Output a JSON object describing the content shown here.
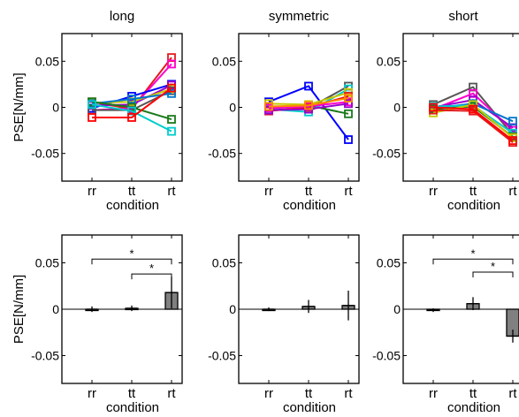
{
  "chart_data": [
    {
      "type": "line",
      "title": "long",
      "xlabel": "condition",
      "ylabel": "PSE[N/mm]",
      "categories": [
        "rr",
        "tt",
        "rt"
      ],
      "ylim": [
        -0.08,
        0.08
      ],
      "yticks": [
        "0.05",
        "0",
        "-0.05"
      ],
      "ytick_values": [
        0.05,
        0,
        -0.05
      ],
      "marker": "square",
      "series": [
        {
          "color": "#e41a1c",
          "values": [
            0.006,
            -0.002,
            0.054
          ]
        },
        {
          "color": "#ff00cc",
          "values": [
            -0.003,
            -0.001,
            0.047
          ]
        },
        {
          "color": "#0000ff",
          "values": [
            -0.001,
            0.012,
            0.025
          ]
        },
        {
          "color": "#9900cc",
          "values": [
            0.002,
            0.003,
            0.024
          ]
        },
        {
          "color": "#c8c800",
          "values": [
            0.005,
            0.006,
            0.02
          ]
        },
        {
          "color": "#555555",
          "values": [
            -0.003,
            -0.003,
            0.018
          ]
        },
        {
          "color": "#0077cc",
          "values": [
            0.004,
            0.009,
            0.015
          ]
        },
        {
          "color": "#1a7a1a",
          "values": [
            0.006,
            0.0,
            -0.013
          ]
        },
        {
          "color": "#00cccc",
          "values": [
            0.003,
            -0.004,
            -0.026
          ]
        },
        {
          "color": "#ff0000",
          "values": [
            -0.011,
            -0.011,
            0.021
          ]
        }
      ]
    },
    {
      "type": "line",
      "title": "symmetric",
      "xlabel": "condition",
      "categories": [
        "rr",
        "tt",
        "rt"
      ],
      "ylim": [
        -0.08,
        0.08
      ],
      "yticks": [
        "0.05",
        "0",
        "-0.05"
      ],
      "ytick_values": [
        0.05,
        0,
        -0.05
      ],
      "marker": "square",
      "series": [
        {
          "color": "#0000ff",
          "values": [
            0.006,
            0.023,
            -0.035
          ]
        },
        {
          "color": "#555555",
          "values": [
            -0.003,
            -0.001,
            0.023
          ]
        },
        {
          "color": "#1a7a1a",
          "values": [
            0.0,
            0.002,
            -0.007
          ]
        },
        {
          "color": "#00cccc",
          "values": [
            -0.002,
            -0.005,
            0.02
          ]
        },
        {
          "color": "#c8c800",
          "values": [
            0.004,
            0.003,
            0.016
          ]
        },
        {
          "color": "#e41a1c",
          "values": [
            -0.004,
            0.0,
            0.012
          ]
        },
        {
          "color": "#ff00cc",
          "values": [
            -0.001,
            0.001,
            0.006
          ]
        },
        {
          "color": "#9900cc",
          "values": [
            -0.003,
            -0.002,
            0.004
          ]
        },
        {
          "color": "#ff8800",
          "values": [
            0.001,
            0.002,
            0.01
          ]
        }
      ]
    },
    {
      "type": "line",
      "title": "short",
      "xlabel": "condition",
      "categories": [
        "rr",
        "tt",
        "rt"
      ],
      "ylim": [
        -0.08,
        0.08
      ],
      "yticks": [
        "0.05",
        "0",
        "-0.05"
      ],
      "ytick_values": [
        0.05,
        0,
        -0.05
      ],
      "marker": "square",
      "series": [
        {
          "color": "#555555",
          "values": [
            0.003,
            0.022,
            -0.03
          ]
        },
        {
          "color": "#ff00cc",
          "values": [
            -0.002,
            0.015,
            -0.025
          ]
        },
        {
          "color": "#9900cc",
          "values": [
            0.0,
            0.008,
            -0.022
          ]
        },
        {
          "color": "#0077cc",
          "values": [
            -0.001,
            0.004,
            -0.015
          ]
        },
        {
          "color": "#00cccc",
          "values": [
            0.001,
            0.002,
            -0.028
          ]
        },
        {
          "color": "#1a7a1a",
          "values": [
            -0.002,
            0.001,
            -0.032
          ]
        },
        {
          "color": "#c8c800",
          "values": [
            -0.006,
            0.003,
            -0.033
          ]
        },
        {
          "color": "#e41a1c",
          "values": [
            -0.003,
            -0.004,
            -0.038
          ]
        },
        {
          "color": "#ff0000",
          "values": [
            0.0,
            -0.002,
            -0.036
          ]
        }
      ]
    },
    {
      "type": "bar",
      "xlabel": "condition",
      "ylabel": "PSE[N/mm]",
      "categories": [
        "rr",
        "tt",
        "rt"
      ],
      "ylim": [
        -0.08,
        0.08
      ],
      "yticks": [
        "0.05",
        "0",
        "-0.05"
      ],
      "ytick_values": [
        0.05,
        0,
        -0.05
      ],
      "values": [
        0.0,
        0.001,
        0.018
      ],
      "errors": [
        0.003,
        0.003,
        0.017
      ],
      "bar_color": "#808080",
      "significance": [
        {
          "from": 0,
          "to": 2,
          "label": "*",
          "y": 0.054
        },
        {
          "from": 1,
          "to": 2,
          "label": "*",
          "y": 0.038
        }
      ]
    },
    {
      "type": "bar",
      "xlabel": "condition",
      "categories": [
        "rr",
        "tt",
        "rt"
      ],
      "ylim": [
        -0.08,
        0.08
      ],
      "yticks": [
        "0.05",
        "0",
        "-0.05"
      ],
      "ytick_values": [
        0.05,
        0,
        -0.05
      ],
      "values": [
        0.0,
        0.003,
        0.004
      ],
      "errors": [
        0.002,
        0.007,
        0.016
      ],
      "bar_color": "#808080",
      "significance": []
    },
    {
      "type": "bar",
      "xlabel": "condition",
      "categories": [
        "rr",
        "tt",
        "rt"
      ],
      "ylim": [
        -0.08,
        0.08
      ],
      "yticks": [
        "0.05",
        "0",
        "-0.05"
      ],
      "ytick_values": [
        0.05,
        0,
        -0.05
      ],
      "values": [
        -0.001,
        0.006,
        -0.029
      ],
      "errors": [
        0.002,
        0.007,
        0.007
      ],
      "bar_color": "#808080",
      "significance": [
        {
          "from": 0,
          "to": 2,
          "label": "*",
          "y": 0.054
        },
        {
          "from": 1,
          "to": 2,
          "label": "*",
          "y": 0.04
        }
      ]
    }
  ]
}
